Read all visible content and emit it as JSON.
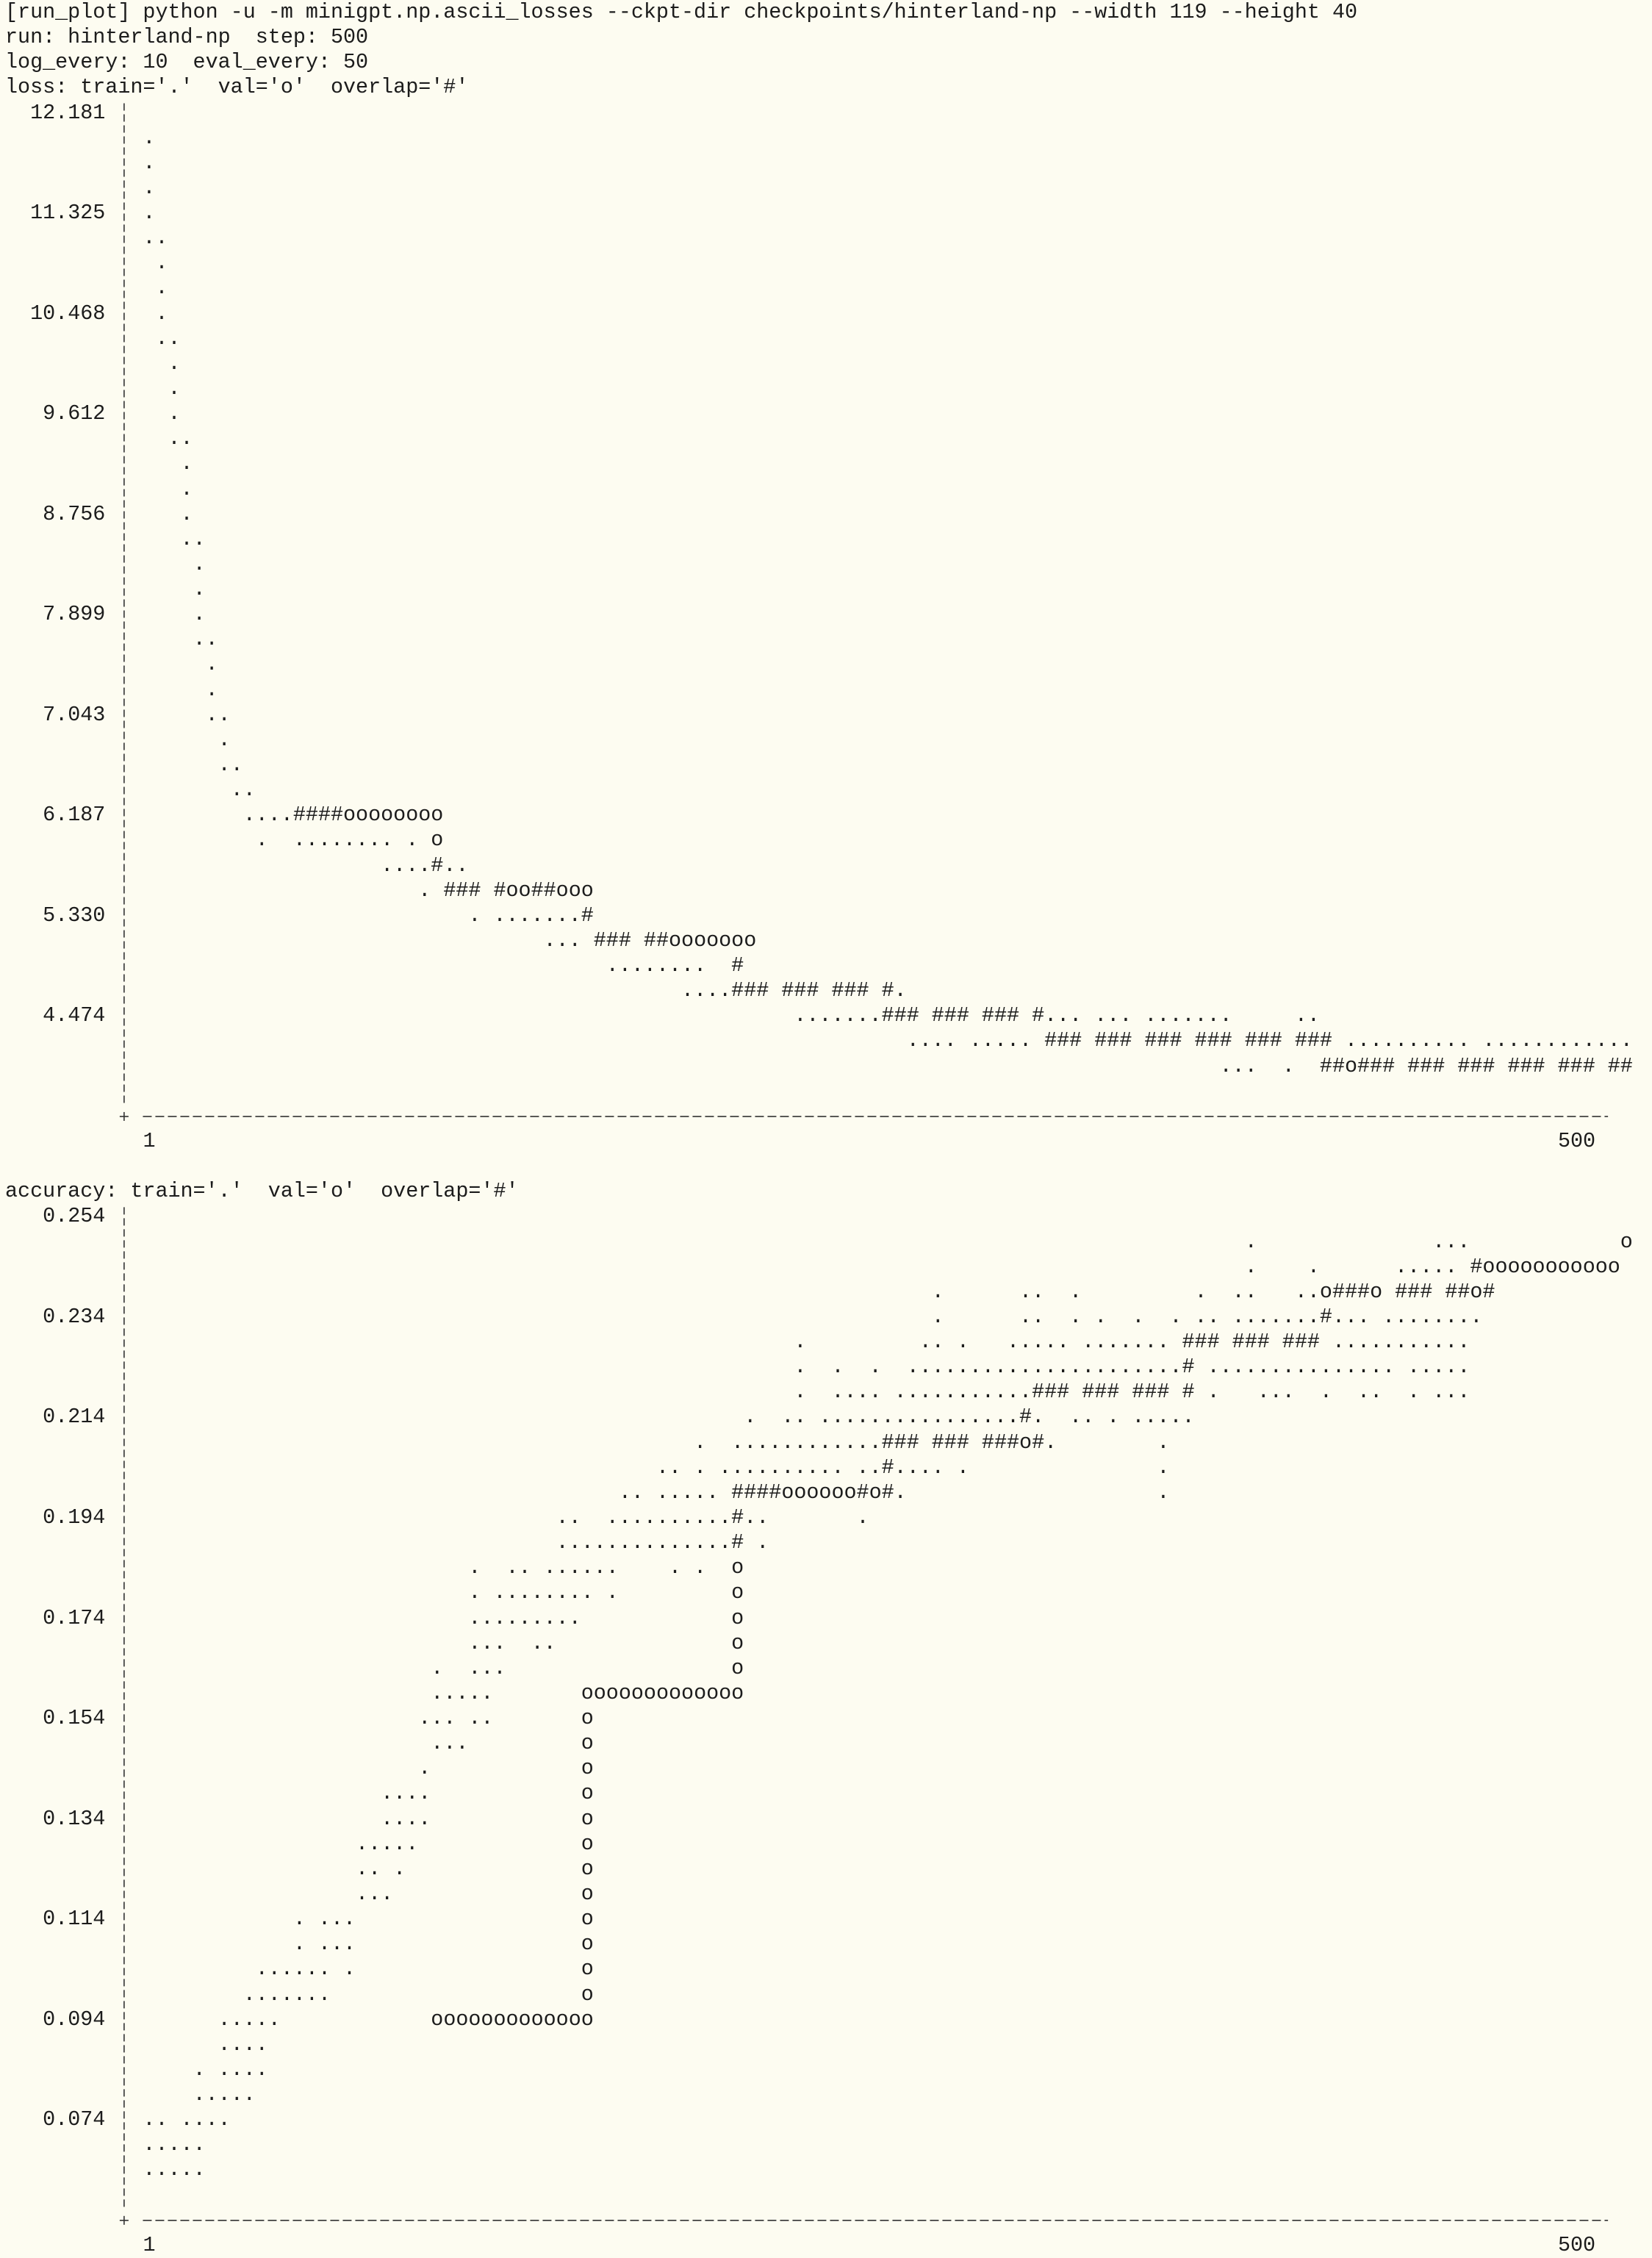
{
  "terminal": {
    "command": "[run_plot] python -u -m minigpt.np.ascii_losses --ckpt-dir checkpoints/hinterland-np --width 119 --height 40",
    "run_info": "run: hinterland-np  step: 500",
    "log_info": "log_every: 10  eval_every: 50",
    "plots": [
      {
        "legend": "loss: train='.'  val='o'  overlap='#'",
        "y_labels": [
          "12.181",
          "11.325",
          "10.468",
          "9.612",
          "8.756",
          "7.899",
          "7.043",
          "6.187",
          "5.330",
          "4.474"
        ],
        "rows": [
          "",
          " .",
          " .",
          " .",
          " .",
          " ..",
          "  .",
          "  .",
          "  .",
          "  ..",
          "   .",
          "   .",
          "   .",
          "   ..",
          "    .",
          "    .",
          "    .",
          "    ..",
          "     .",
          "     .",
          "     .",
          "     ..",
          "      .",
          "      .",
          "      ..",
          "       .",
          "       ..",
          "        ..",
          "         ....####oooooooo",
          "          .  ........ . o",
          "                    ....#..",
          "                       . ### #oo##ooo",
          "                           . .......#",
          "                                 ... ### ##ooooooo",
          "                                      ........  #",
          "                                            ....### ### ### #.",
          "                                                     .......### ### ### #... ... .......     ..",
          "                                                              .... ..... ### ### ### ### ### ### .......... ............",
          "                                                                                       ...  .  ##o### ### ### ### ### ##",
          ""
        ],
        "x_start": "1",
        "x_end": "500"
      },
      {
        "legend": "accuracy: train='.'  val='o'  overlap='#'",
        "y_labels": [
          "0.254",
          "0.234",
          "0.214",
          "0.194",
          "0.174",
          "0.154",
          "0.134",
          "0.114",
          "0.094",
          "0.074"
        ],
        "rows": [
          "",
          "                                                                                         .              ...            o",
          "                                                                                         .    .      ..... #ooooooooooo",
          "                                                                .      ..  .         .  ..   ..o###o ### ##o#",
          "                                                                .      ..  . .  .  . .. .......#... ........",
          "                                                     .         .. .   ..... ....... ### ### ### ...........",
          "                                                     .  .  .  ......................# ............... .....",
          "                                                     .  .... ...........### ### ### # .   ...  .  ..  . ...",
          "                                                 .  .. ................#.  .. . .....",
          "                                             .  ............### ### ###o#.        .",
          "                                          .. . .......... ..#.... .               .",
          "                                       .. ..... ####oooooo#o#.                    .",
          "                                  ..  ..........#..       .",
          "                                  ..............# .",
          "                           .  .. ......    . .  o",
          "                           . ........ .         o",
          "                           .........            o",
          "                           ...  ..              o",
          "                        .  ...                  o",
          "                        .....       ooooooooooooo",
          "                       ... ..       o",
          "                        ...         o",
          "                       .            o",
          "                    ....            o",
          "                    ....            o",
          "                  .....             o",
          "                  .. .              o",
          "                  ...               o",
          "             . ...                  o",
          "             . ...                  o",
          "          ...... .                  o",
          "         .......                    o",
          "       .....            ooooooooooooo",
          "       ....",
          "     . ....",
          "     .....",
          " .. ....",
          " .....",
          " .....",
          ""
        ],
        "x_start": "1",
        "x_end": "500"
      }
    ]
  }
}
